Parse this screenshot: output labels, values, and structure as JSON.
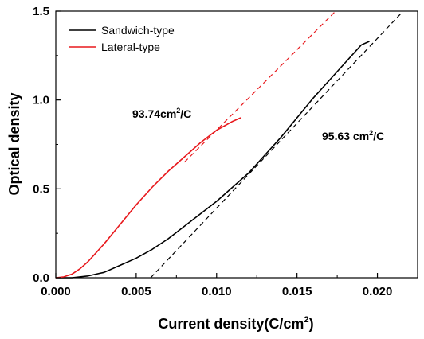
{
  "chart_data": {
    "type": "line",
    "xlabel": "Current density(C/cm",
    "xlabel_sup": "2",
    "xlabel_close": ")",
    "ylabel": "Optical density",
    "xlim": [
      0.0,
      0.0225
    ],
    "ylim": [
      0.0,
      1.5
    ],
    "x_ticks": [
      0.0,
      0.005,
      0.01,
      0.015,
      0.02
    ],
    "x_tick_labels": [
      "0.000",
      "0.005",
      "0.010",
      "0.015",
      "0.020"
    ],
    "y_ticks": [
      0.0,
      0.5,
      1.0,
      1.5
    ],
    "y_tick_labels": [
      "0.0",
      "0.5",
      "1.0",
      "1.5"
    ],
    "grid": false,
    "legend_position": "top-left",
    "series": [
      {
        "name": "Sandwich-type",
        "color": "#000000",
        "style": "solid",
        "x": [
          0.0,
          0.001,
          0.002,
          0.003,
          0.004,
          0.005,
          0.006,
          0.007,
          0.008,
          0.009,
          0.01,
          0.011,
          0.012,
          0.013,
          0.014,
          0.015,
          0.016,
          0.017,
          0.018,
          0.019,
          0.0195
        ],
        "y": [
          0.0,
          0.0,
          0.01,
          0.03,
          0.07,
          0.11,
          0.16,
          0.22,
          0.29,
          0.36,
          0.43,
          0.51,
          0.59,
          0.69,
          0.79,
          0.9,
          1.01,
          1.11,
          1.21,
          1.31,
          1.33
        ]
      },
      {
        "name": "Lateral-type",
        "color": "#e8191d",
        "style": "solid",
        "x": [
          0.0,
          0.0005,
          0.001,
          0.0015,
          0.002,
          0.003,
          0.004,
          0.005,
          0.006,
          0.007,
          0.008,
          0.009,
          0.01,
          0.011,
          0.0115
        ],
        "y": [
          0.0,
          0.005,
          0.02,
          0.05,
          0.09,
          0.19,
          0.3,
          0.41,
          0.51,
          0.6,
          0.68,
          0.76,
          0.83,
          0.88,
          0.9
        ]
      },
      {
        "fit_of": "Sandwich-type",
        "color": "#000000",
        "style": "dashed",
        "x": [
          0.0059,
          0.0215
        ],
        "y": [
          0.0,
          1.49
        ]
      },
      {
        "fit_of": "Lateral-type",
        "color": "#e8191d",
        "style": "dashed",
        "x": [
          0.008,
          0.0174
        ],
        "y": [
          0.65,
          1.5
        ]
      }
    ],
    "annotations": [
      {
        "base": "93.74cm",
        "sup": "2",
        "tail": "/C",
        "x": 0.0058,
        "y": 0.9
      },
      {
        "base": "95.63 cm",
        "sup": "2",
        "tail": "/C",
        "x": 0.0155,
        "y": 0.78
      }
    ]
  }
}
